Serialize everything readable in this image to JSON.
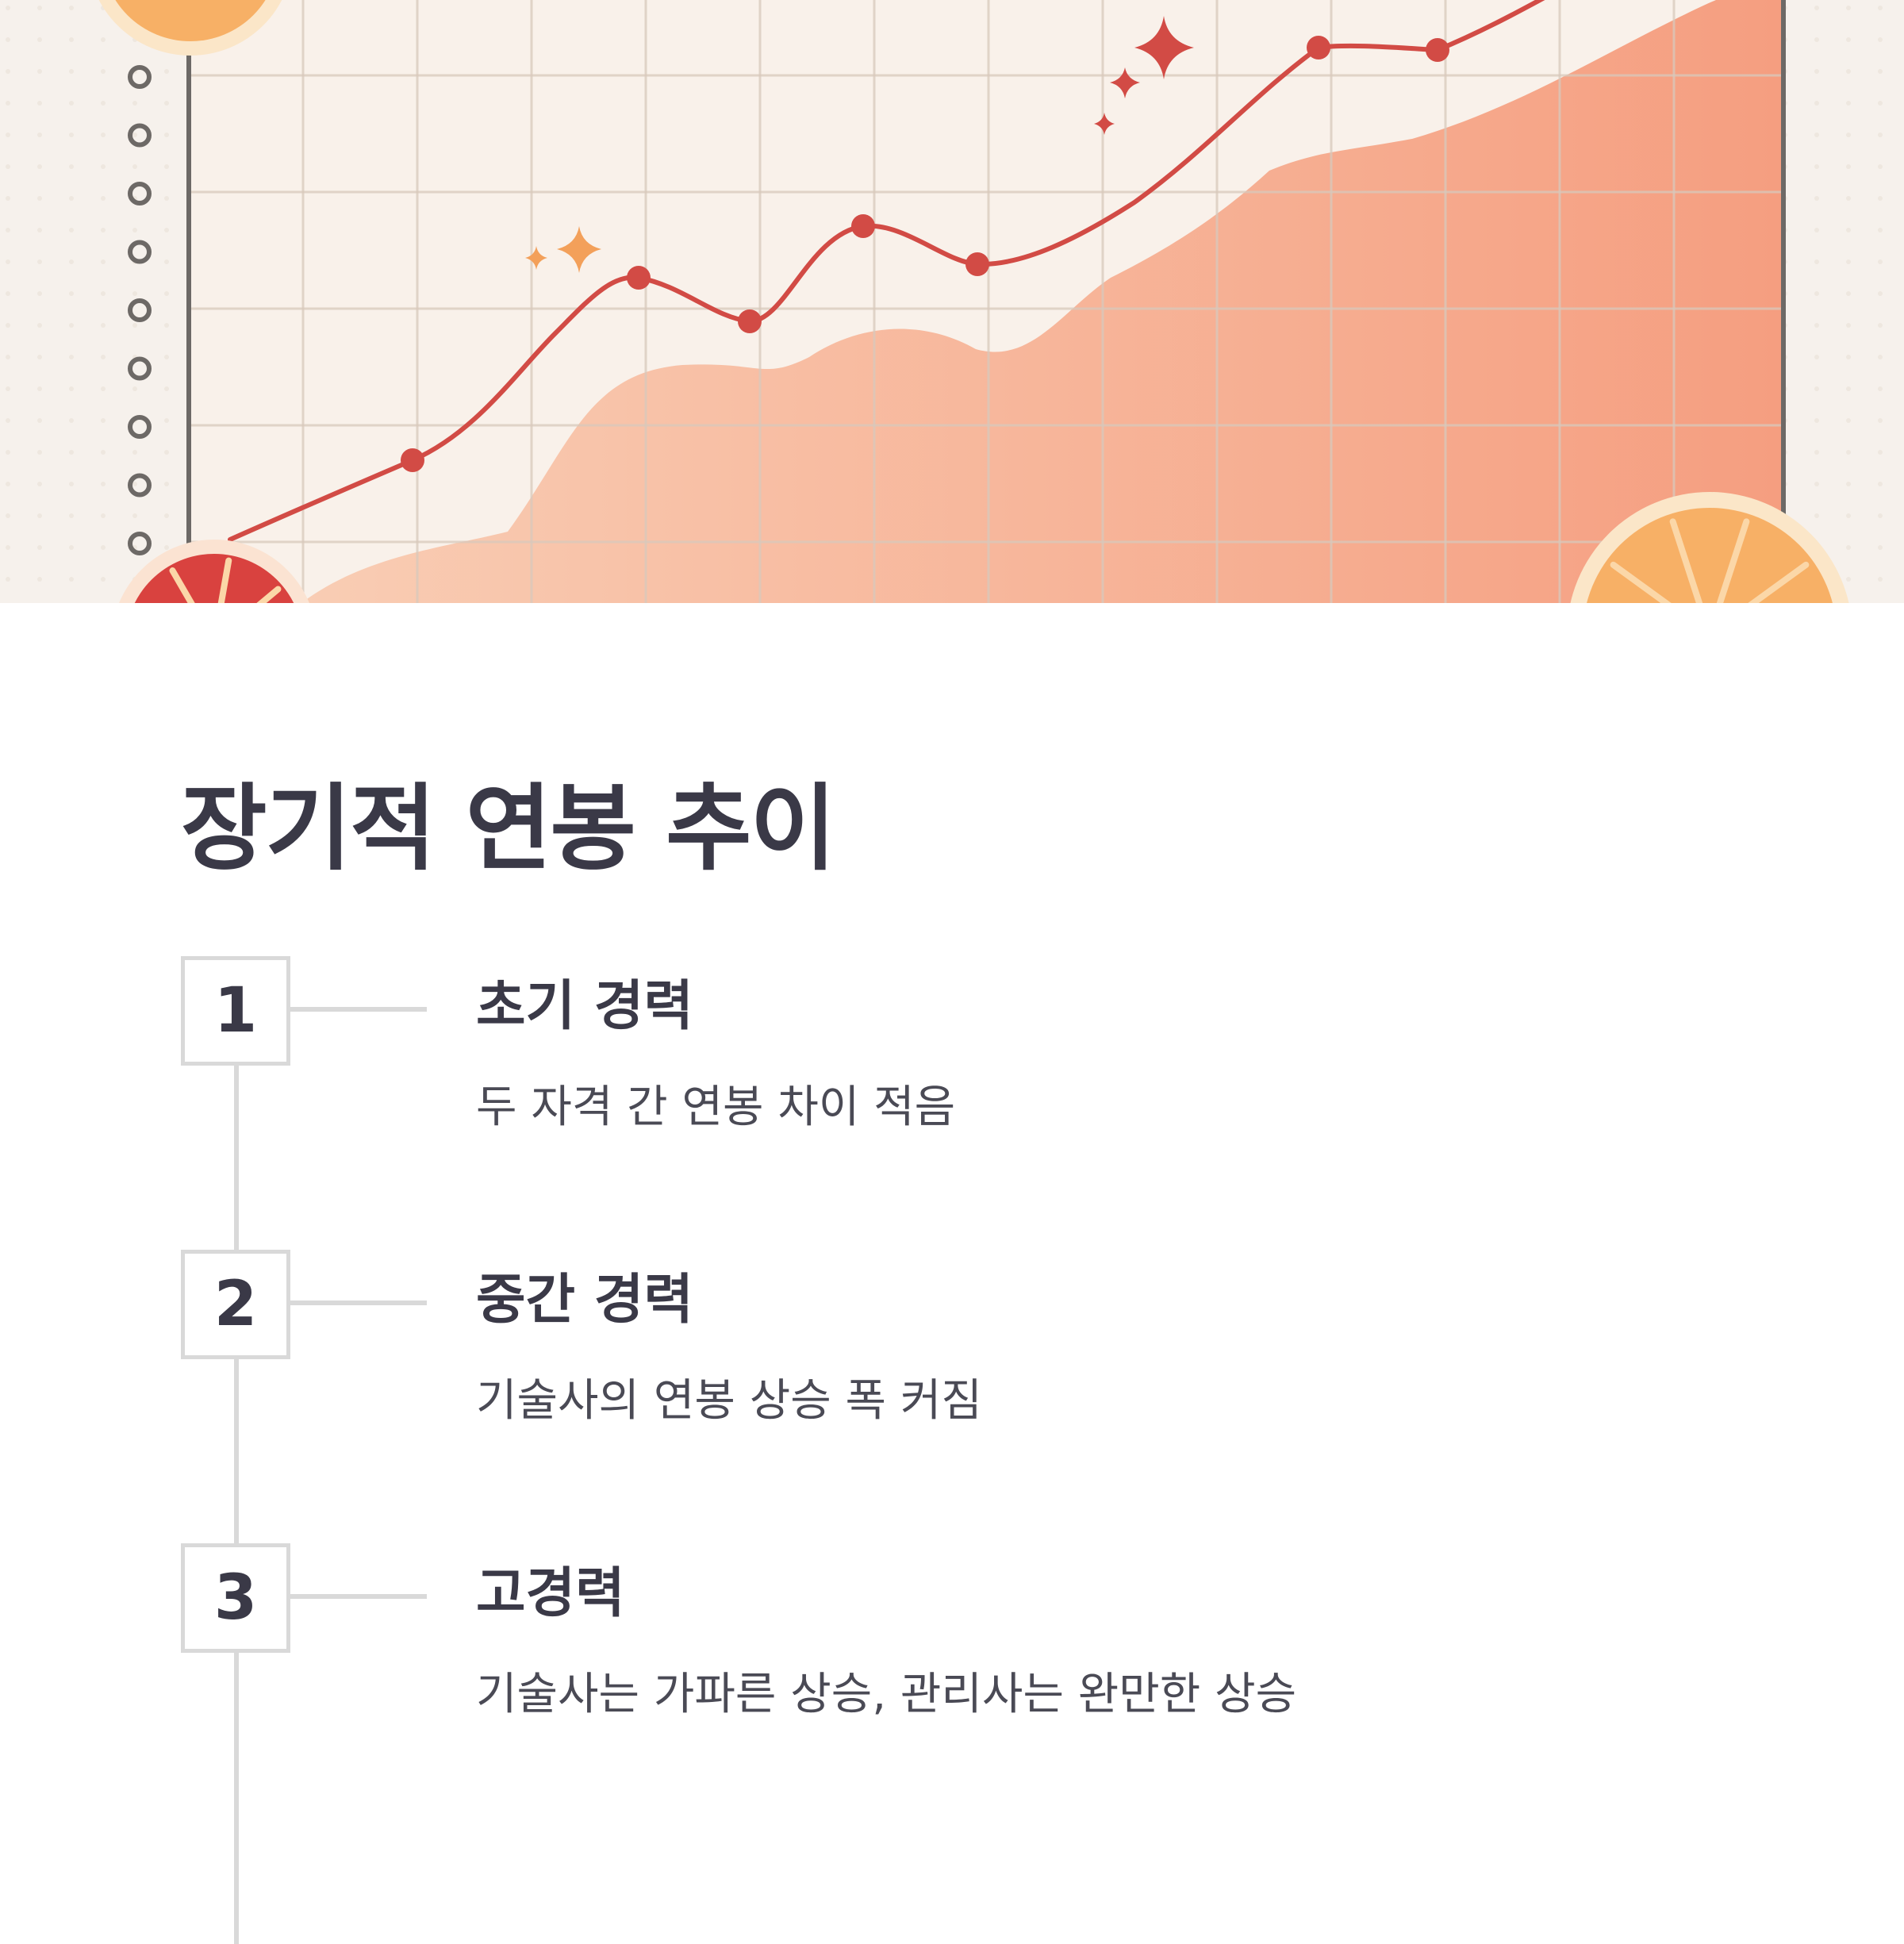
{
  "hero": {
    "palette": {
      "background": "#f6f1ec",
      "grid": "#d8c9bc",
      "line": "#d24b45",
      "area": "#f6a88a",
      "area_light": "#f9c7ad",
      "axis": "#6d6966",
      "orange": "#f7a35c",
      "grapefruit": "#d9423f",
      "sparkle_red": "#d24b45",
      "sparkle_orange": "#f3a05a"
    },
    "icons": [
      "spiral-binding-icon",
      "sparkle-icon",
      "orange-slice-icon",
      "grapefruit-slice-icon"
    ]
  },
  "section": {
    "title": "장기적 연봉 추이",
    "steps": [
      {
        "number": "1",
        "title": "초기 경력",
        "description": "두 자격 간 연봉 차이 적음"
      },
      {
        "number": "2",
        "title": "중간 경력",
        "description": "기술사의 연봉 상승 폭 커짐"
      },
      {
        "number": "3",
        "title": "고경력",
        "description": "기술사는 가파른 상승, 관리사는 완만한 상승"
      }
    ]
  }
}
